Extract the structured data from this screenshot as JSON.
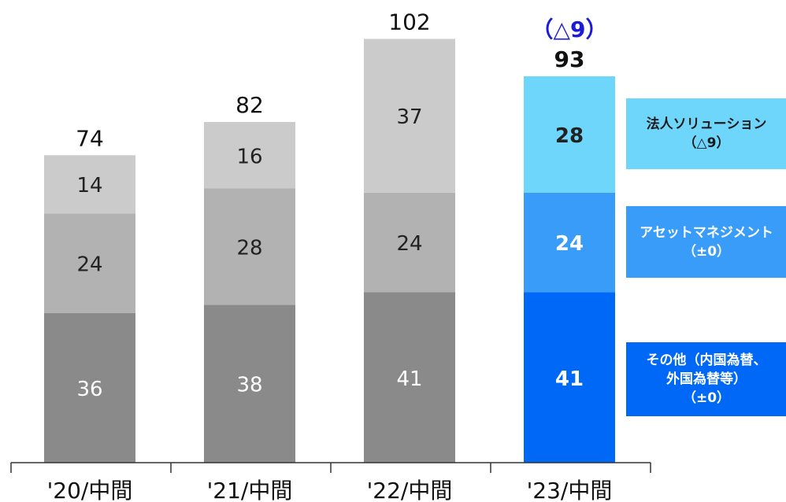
{
  "chart_data": {
    "type": "bar",
    "stacked": true,
    "categories": [
      "'20/中間",
      "'21/中間",
      "'22/中間",
      "'23/中間"
    ],
    "series": [
      {
        "name": "その他（内国為替、外国為替等）",
        "change": "（±0）",
        "values": [
          36,
          38,
          41,
          41
        ]
      },
      {
        "name": "アセットマネジメント",
        "change": "（±0）",
        "values": [
          24,
          28,
          24,
          24
        ]
      },
      {
        "name": "法人ソリューション",
        "change": "（△9）",
        "values": [
          14,
          16,
          37,
          28
        ]
      }
    ],
    "totals": [
      74,
      82,
      102,
      93
    ],
    "total_change": "（△9）",
    "highlight_index": 3,
    "ylim": [
      0,
      105
    ],
    "grid": false,
    "legend_position": "right",
    "colors": {
      "past_series": [
        "#8a8a8a",
        "#b2b2b2",
        "#cbcbcb"
      ],
      "highlight_series": [
        "#0068f7",
        "#3a9cf9",
        "#6fd6fb"
      ],
      "past_label": "#ffffff",
      "highlight_label": "#ffffff",
      "dark_label": "#222222",
      "total_change": "#1b1bd8",
      "axis": "#333333"
    }
  },
  "legend": {
    "corporate": {
      "line1": "法人ソリューション",
      "line2": "（△9）"
    },
    "asset": {
      "line1": "アセットマネジメント",
      "line2": "（±0）"
    },
    "other": {
      "line1": "その他（内国為替、",
      "line2": "外国為替等）",
      "line3": "（±0）"
    }
  }
}
